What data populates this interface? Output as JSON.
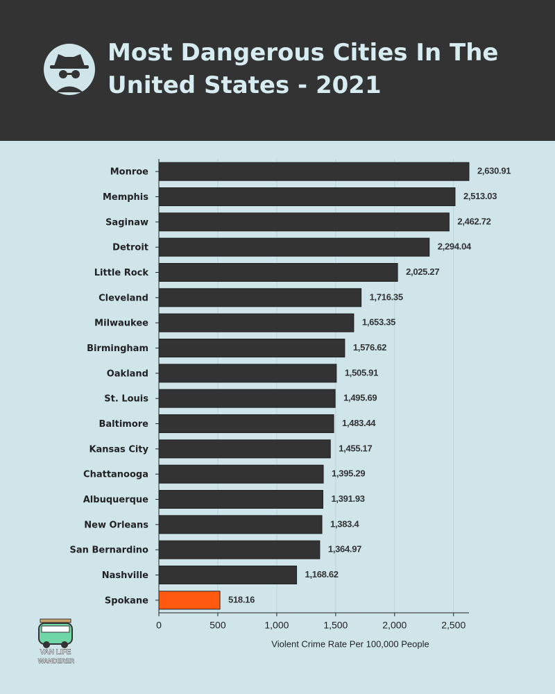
{
  "chart_data": {
    "type": "hbar",
    "title": "Most Dangerous Cities In The United States - 2021",
    "categories": [
      "Monroe",
      "Memphis",
      "Saginaw",
      "Detroit",
      "Little Rock",
      "Cleveland",
      "Milwaukee",
      "Birmingham",
      "Oakland",
      "St. Louis",
      "Baltimore",
      "Kansas City",
      "Chattanooga",
      "Albuquerque",
      "New Orleans",
      "San Bernardino",
      "Nashville",
      "Spokane"
    ],
    "values": [
      2630.91,
      2513.03,
      2462.72,
      2294.04,
      2025.27,
      1716.35,
      1653.35,
      1576.62,
      1505.91,
      1495.69,
      1483.44,
      1455.17,
      1395.29,
      1391.93,
      1383.4,
      1364.97,
      1168.62,
      518.16
    ],
    "value_labels": [
      "2,630.91",
      "2,513.03",
      "2,462.72",
      "2,294.04",
      "2,025.27",
      "1,716.35",
      "1,653.35",
      "1,576.62",
      "1,505.91",
      "1,495.69",
      "1,483.44",
      "1,455.17",
      "1,395.29",
      "1,391.93",
      "1,383.4",
      "1,364.97",
      "1,168.62",
      "518.16"
    ],
    "colors": [
      "#333333",
      "#333333",
      "#333333",
      "#333333",
      "#333333",
      "#333333",
      "#333333",
      "#333333",
      "#333333",
      "#333333",
      "#333333",
      "#333333",
      "#333333",
      "#333333",
      "#333333",
      "#333333",
      "#333333",
      "#ff5a0f"
    ],
    "xlim": [
      0,
      2631
    ],
    "xticks": [
      0,
      500,
      {
        "value": 1000,
        "label": "1,000"
      },
      {
        "value": 1500,
        "label": "1,500"
      },
      {
        "value": 2000,
        "label": "2,000"
      },
      {
        "value": 2500,
        "label": "2,500"
      }
    ],
    "xlabel": "Violent Crime Rate Per 100,000 People",
    "grid": true
  },
  "logo_text": [
    "VAN LIFE",
    "WANDERER"
  ]
}
